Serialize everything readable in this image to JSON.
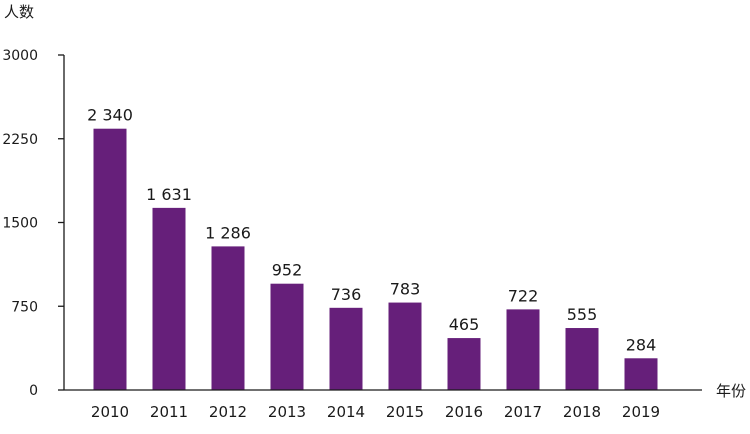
{
  "chart_data": {
    "type": "bar",
    "title": "",
    "ylabel": "人数",
    "xlabel": "年份",
    "categories": [
      "2010",
      "2011",
      "2012",
      "2013",
      "2014",
      "2015",
      "2016",
      "2017",
      "2018",
      "2019"
    ],
    "values": [
      2340,
      1631,
      1286,
      952,
      736,
      783,
      465,
      722,
      555,
      284
    ],
    "data_labels": [
      "2 340",
      "1 631",
      "1 286",
      "952",
      "736",
      "783",
      "465",
      "722",
      "555",
      "284"
    ],
    "ylim": [
      0,
      3000
    ],
    "yticks": [
      0,
      750,
      1500,
      2250,
      3000
    ],
    "ytick_labels": [
      "0",
      "750",
      "1500",
      "2250",
      "3000"
    ],
    "grid": false,
    "legend": "none",
    "bar_color": "#661f7a",
    "axis_color": "#1a1a1a"
  }
}
